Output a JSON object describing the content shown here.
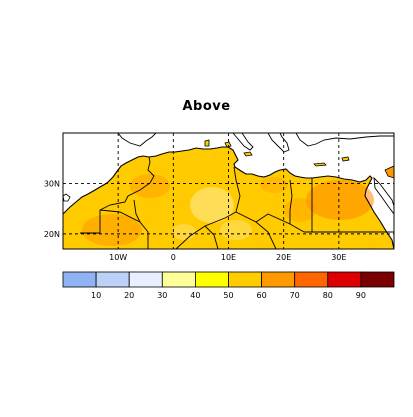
{
  "title": "Above",
  "map": {
    "lon_range": [
      -20,
      40
    ],
    "lat_range": [
      17,
      40
    ],
    "lon_ticks": [
      {
        "value": -10,
        "label": "10W"
      },
      {
        "value": 0,
        "label": "0"
      },
      {
        "value": 10,
        "label": "10E"
      },
      {
        "value": 20,
        "label": "20E"
      },
      {
        "value": 30,
        "label": "30E"
      }
    ],
    "lat_ticks": [
      {
        "value": 30,
        "label": "30N"
      },
      {
        "value": 20,
        "label": "20N"
      }
    ],
    "grid_lines": "dashed",
    "land_fill": "#ffffff",
    "border_color": "#000000"
  },
  "colorbar": {
    "labels": [
      "10",
      "20",
      "30",
      "40",
      "50",
      "60",
      "70",
      "80",
      "90"
    ],
    "colors": [
      "#8fb3f5",
      "#bcd1f8",
      "#e8f0ff",
      "#ffff99",
      "#ffff00",
      "#ffcc00",
      "#ff9900",
      "#ff6600",
      "#dd0000",
      "#7a0000"
    ]
  }
}
